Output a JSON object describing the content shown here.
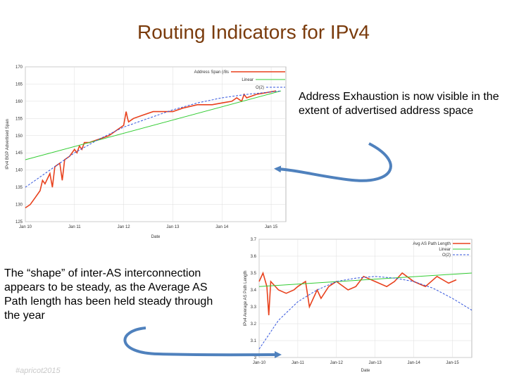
{
  "slide": {
    "title": "Routing Indicators for IPv4",
    "callout_top": "Address Exhaustion is now visible in the extent of advertised address space",
    "callout_bottom": "The “shape” of inter-AS interconnection appears to be steady, as the Average AS Path length has been held steady through the year",
    "footer_logo": "#apricot2015"
  },
  "colors": {
    "title": "#7a3b0c",
    "data_line": "#e8401c",
    "linear_fit": "#33cc33",
    "poly_fit": "#3355dd",
    "arrow": "#4f81bd"
  },
  "chart_data": [
    {
      "type": "line",
      "ylabel": "IPv4 BGP Advertised Span",
      "xlabel": "Date",
      "yticks": [
        "125",
        "130",
        "135",
        "140",
        "145",
        "150",
        "155",
        "160",
        "165",
        "170"
      ],
      "ylim": [
        125,
        170
      ],
      "xticks": [
        "Jan 10",
        "Jan 11",
        "Jan 12",
        "Jan 13",
        "Jan 14",
        "Jan 15"
      ],
      "xlim": [
        2010.0,
        2015.3
      ],
      "legend": [
        "Address Span (/8s",
        "Linear",
        "O(2)"
      ],
      "legend_position": "top-right",
      "grid": true,
      "series": [
        {
          "name": "Address Span (/8s",
          "x": [
            2010.0,
            2010.1,
            2010.2,
            2010.3,
            2010.35,
            2010.4,
            2010.5,
            2010.55,
            2010.6,
            2010.7,
            2010.75,
            2010.8,
            2010.9,
            2011.0,
            2011.05,
            2011.1,
            2011.15,
            2011.2,
            2011.3,
            2011.5,
            2011.7,
            2011.8,
            2011.9,
            2012.0,
            2012.05,
            2012.08,
            2012.1,
            2012.2,
            2012.4,
            2012.6,
            2012.8,
            2013.0,
            2013.2,
            2013.5,
            2013.8,
            2014.0,
            2014.2,
            2014.3,
            2014.4,
            2014.45,
            2014.5,
            2014.7,
            2014.9,
            2015.1
          ],
          "y": [
            129,
            130,
            132,
            134,
            137,
            136,
            139,
            135,
            141,
            142,
            137,
            143,
            144,
            146,
            145,
            147,
            146,
            148,
            148,
            149,
            150,
            151,
            152,
            153,
            157,
            155,
            154,
            155,
            156,
            157,
            157,
            157,
            158,
            159,
            159,
            159.5,
            160,
            161,
            160,
            162,
            161,
            162,
            162.5,
            163
          ]
        },
        {
          "name": "Linear",
          "x": [
            2010.0,
            2015.2
          ],
          "y": [
            143,
            163
          ]
        },
        {
          "name": "O(2)",
          "x": [
            2010.0,
            2010.5,
            2011.0,
            2011.5,
            2012.0,
            2012.5,
            2013.0,
            2013.5,
            2014.0,
            2014.5,
            2015.2
          ],
          "y": [
            135,
            140,
            145,
            149,
            152.5,
            155,
            157.5,
            159.5,
            161,
            162,
            163
          ]
        }
      ]
    },
    {
      "type": "line",
      "ylabel": "IPv4 Average AS Path Length",
      "xlabel": "Date",
      "yticks": [
        "3",
        "3.1",
        "3.2",
        "3.3",
        "3.4",
        "3.5",
        "3.6",
        "3.7"
      ],
      "ylim": [
        3.0,
        3.7
      ],
      "xticks": [
        "Jan-10",
        "Jan-11",
        "Jan-12",
        "Jan-13",
        "Jan-14",
        "Jan-15"
      ],
      "xlim": [
        2010.0,
        2015.5
      ],
      "legend": [
        "Avg AS Path Length",
        "Linear",
        "O(2)"
      ],
      "legend_position": "top-right",
      "grid": true,
      "series": [
        {
          "name": "Avg AS Path Length",
          "x": [
            2010.0,
            2010.1,
            2010.2,
            2010.25,
            2010.3,
            2010.5,
            2010.7,
            2010.9,
            2011.0,
            2011.2,
            2011.3,
            2011.5,
            2011.6,
            2011.8,
            2012.0,
            2012.3,
            2012.5,
            2012.7,
            2013.0,
            2013.3,
            2013.5,
            2013.7,
            2014.0,
            2014.3,
            2014.6,
            2014.9,
            2015.1
          ],
          "y": [
            3.45,
            3.5,
            3.42,
            3.25,
            3.45,
            3.4,
            3.38,
            3.4,
            3.42,
            3.45,
            3.3,
            3.4,
            3.35,
            3.42,
            3.45,
            3.4,
            3.42,
            3.48,
            3.45,
            3.42,
            3.45,
            3.5,
            3.45,
            3.42,
            3.48,
            3.44,
            3.46
          ]
        },
        {
          "name": "Linear",
          "x": [
            2010.0,
            2015.5
          ],
          "y": [
            3.42,
            3.5
          ]
        },
        {
          "name": "O(2)",
          "x": [
            2010.0,
            2010.5,
            2011.0,
            2011.5,
            2012.0,
            2012.5,
            2013.0,
            2013.5,
            2014.0,
            2014.5,
            2015.0,
            2015.5
          ],
          "y": [
            3.05,
            3.22,
            3.33,
            3.4,
            3.45,
            3.47,
            3.48,
            3.47,
            3.45,
            3.41,
            3.35,
            3.28
          ]
        }
      ]
    }
  ]
}
